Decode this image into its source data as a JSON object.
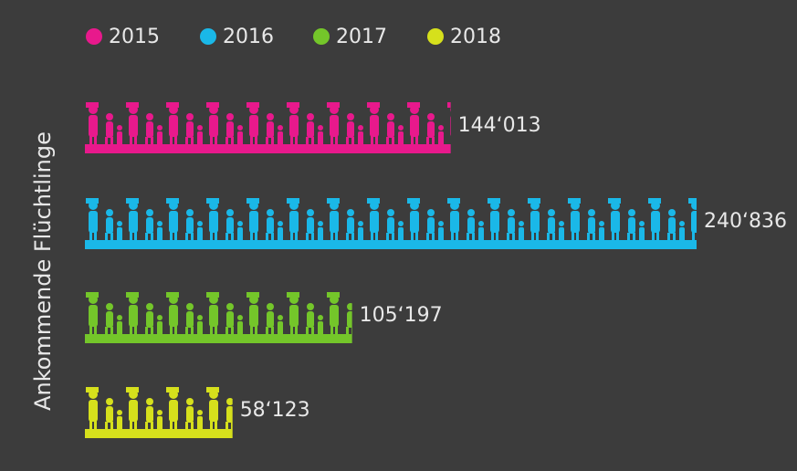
{
  "chart_data": {
    "type": "bar",
    "orientation": "horizontal",
    "y_label": "Ankommende Flüchtlinge",
    "categories": [
      "2015",
      "2016",
      "2017",
      "2018"
    ],
    "colors": [
      "#e8198c",
      "#1ab8e8",
      "#74c62a",
      "#d6e01c"
    ],
    "values": [
      144013,
      240836,
      105197,
      58123
    ],
    "value_labels": [
      "144‘013",
      "240‘836",
      "105‘197",
      "58‘123"
    ]
  }
}
